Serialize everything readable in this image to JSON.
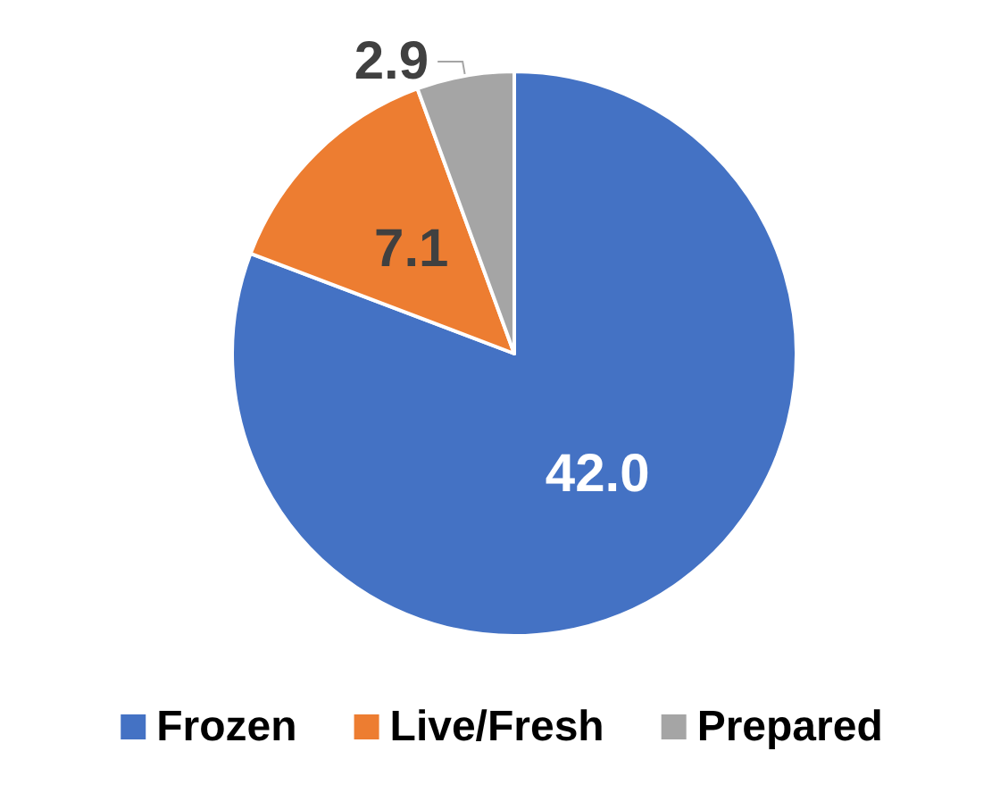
{
  "chart_data": {
    "type": "pie",
    "categories": [
      "Frozen",
      "Live/Fresh",
      "Prepared"
    ],
    "values": [
      42.0,
      7.1,
      2.9
    ],
    "colors": [
      "#4472c4",
      "#ed7d31",
      "#a5a5a5"
    ],
    "value_labels": [
      "42.0",
      "7.1",
      "2.9"
    ],
    "legend": "bottom"
  }
}
